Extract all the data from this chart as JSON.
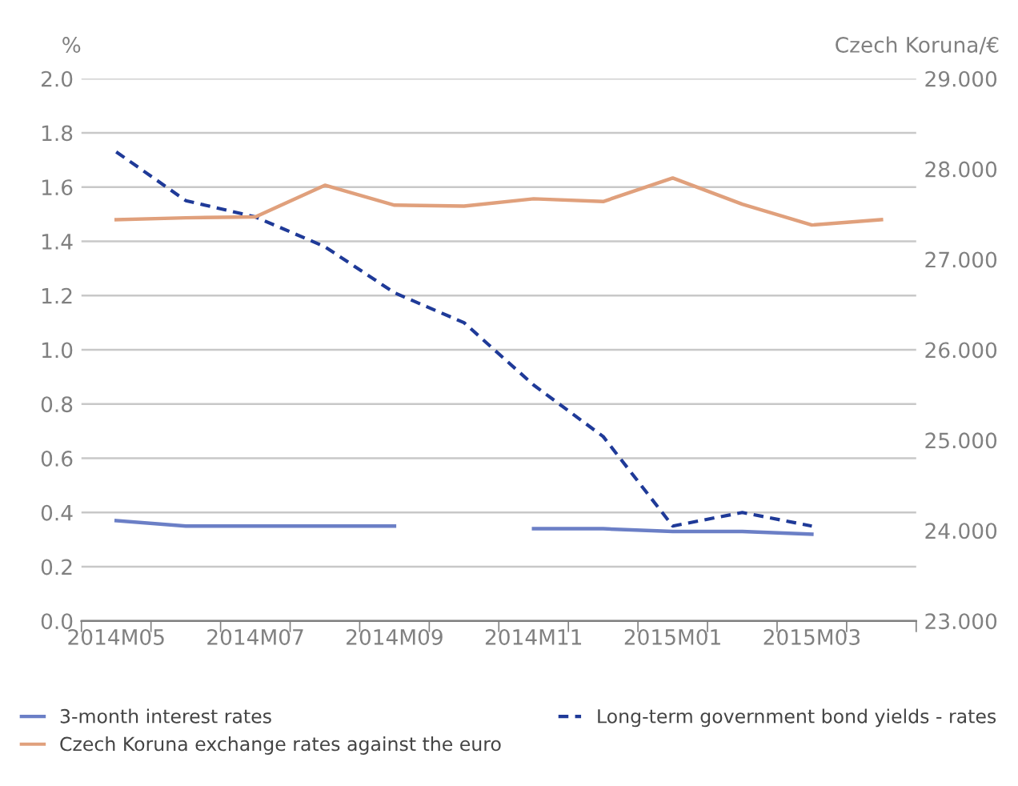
{
  "chart_data": {
    "type": "line",
    "ylabel": "%",
    "y2label": "Czech Koruna/€",
    "categories": [
      "2014M05",
      null,
      "2014M07",
      null,
      "2014M09",
      null,
      "2014M11",
      null,
      "2015M01",
      null,
      "2015M03",
      null
    ],
    "series": [
      {
        "name": "3-month interest rates",
        "color": "#6b7fc6",
        "line_style": "solid",
        "values": [
          0.37,
          0.35,
          0.35,
          0.35,
          0.35,
          null,
          0.34,
          0.34,
          0.33,
          0.33,
          0.32,
          null
        ]
      },
      {
        "name": "Long-term government bond yields - rates",
        "color": "#1f3a98",
        "line_style": "dashed",
        "values": [
          1.73,
          1.55,
          1.49,
          1.38,
          1.21,
          1.1,
          0.87,
          0.68,
          0.35,
          0.4,
          0.35,
          null
        ]
      },
      {
        "name": "Czech Koruna exchange rates against the euro",
        "color": "#e0a07c",
        "line_style": "solid",
        "axis": "y2",
        "values": [
          27.44,
          27.46,
          27.47,
          27.82,
          27.6,
          27.59,
          27.67,
          27.64,
          27.9,
          27.61,
          27.38,
          27.44
        ]
      }
    ],
    "ylim": [
      0,
      2
    ],
    "yticks": [
      {
        "value": 0,
        "label": "0.0"
      },
      0.2,
      0.4,
      0.6,
      0.8,
      {
        "value": 1,
        "label": "1.0"
      },
      1.2,
      1.4,
      1.6,
      1.8,
      {
        "value": 2,
        "label": "2.0"
      }
    ],
    "y2lim": [
      23,
      29
    ],
    "y2ticks": [
      {
        "value": 23,
        "label": "23.000"
      },
      {
        "value": 24,
        "label": "24.000"
      },
      {
        "value": 25,
        "label": "25.000"
      },
      {
        "value": 26,
        "label": "26.000"
      },
      {
        "value": 27,
        "label": "27.000"
      },
      {
        "value": 28,
        "label": "28.000"
      },
      {
        "value": 29,
        "label": "29.000"
      }
    ],
    "grid": "y",
    "legend": "bottom",
    "marker": "none"
  }
}
